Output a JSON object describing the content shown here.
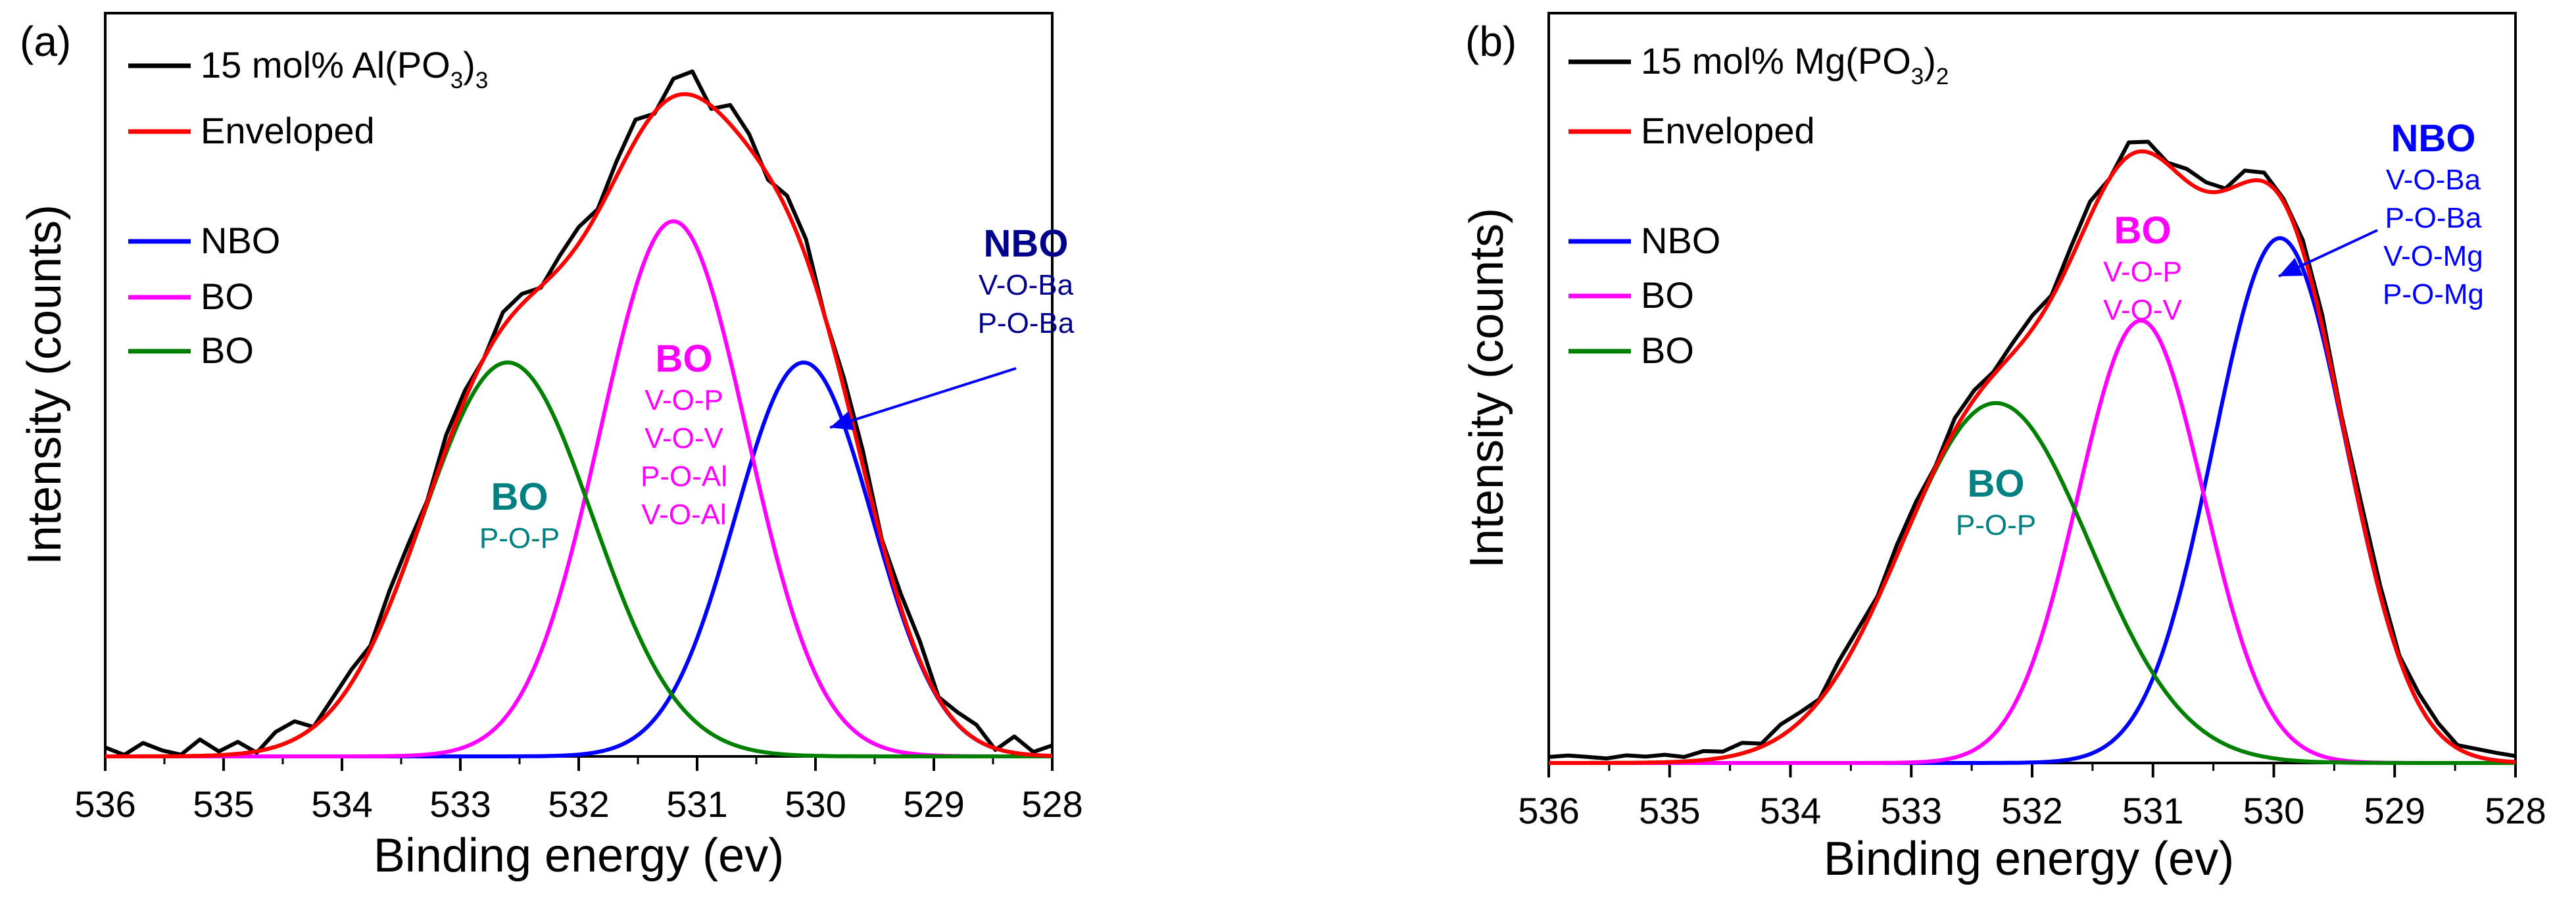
{
  "figure": {
    "xlabel": "Binding energy (ev)",
    "ylabel": "Intensity (counts)"
  },
  "colors": {
    "exp": "#000000",
    "env": "#ff0000",
    "nbo": "#0000ff",
    "bo1": "#ff00ff",
    "bo2": "#008000",
    "bo_teal": "#008080",
    "nbo_dark": "#00008b"
  },
  "chart_data": [
    {
      "panel_label": "(a)",
      "type": "line",
      "xlabel": "Binding energy (ev)",
      "ylabel": "Intensity (counts)",
      "xlim": [
        536,
        528
      ],
      "ylim": [
        0,
        1.0
      ],
      "y_ticks_shown": false,
      "xticks": [
        "536",
        "535",
        "534",
        "533",
        "532",
        "531",
        "530",
        "529",
        "528"
      ],
      "legend": {
        "placement": "top-left",
        "entries": [
          {
            "key": "exp",
            "pre": "15 mol% Al(PO",
            "sub1": "3",
            "mid": ")",
            "sub2": "3"
          },
          {
            "key": "env",
            "pre": "Enveloped",
            "sub1": "",
            "mid": "",
            "sub2": ""
          },
          {
            "key": "nbo",
            "pre": "NBO",
            "sub1": "",
            "mid": "",
            "sub2": ""
          },
          {
            "key": "bo1",
            "pre": "BO",
            "sub1": "",
            "mid": "",
            "sub2": ""
          },
          {
            "key": "bo2",
            "pre": "BO",
            "sub1": "",
            "mid": "",
            "sub2": ""
          }
        ]
      },
      "series": [
        {
          "name": "NBO",
          "key": "nbo",
          "center": 530.1,
          "sigma": 0.58,
          "amplitude": 0.53
        },
        {
          "name": "BO",
          "key": "bo1",
          "center": 531.2,
          "sigma": 0.62,
          "amplitude": 0.72
        },
        {
          "name": "BO",
          "key": "bo2",
          "center": 532.6,
          "sigma": 0.72,
          "amplitude": 0.53
        }
      ],
      "experimental_noise": [
        0.004,
        -0.012,
        0.01,
        0.0,
        -0.006,
        0.014,
        -0.003,
        0.008,
        -0.01,
        0.012,
        0.016,
        -0.008,
        0.006,
        0.01,
        -0.004,
        0.012,
        0.008,
        -0.006,
        0.01,
        0.004,
        -0.008,
        0.012,
        0.006,
        -0.01,
        0.008,
        0.014,
        -0.004,
        0.012,
        0.02,
        -0.01,
        0.016,
        0.024,
        -0.012,
        0.018,
        0.01,
        -0.014,
        0.012,
        0.016,
        -0.008,
        0.006,
        0.012,
        -0.006,
        0.01,
        0.018,
        -0.006,
        0.008,
        0.012,
        -0.01,
        0.014,
        -0.004,
        0.006
      ],
      "annotations": [
        {
          "title": "NBO",
          "lines": [
            "V-O-Ba",
            "P-O-Ba"
          ],
          "colorKey": "nbo_dark",
          "arrow": true
        },
        {
          "title": "BO",
          "lines": [
            "V-O-P",
            "V-O-V",
            "P-O-Al",
            "V-O-Al"
          ],
          "colorKey": "bo1",
          "arrow": false
        },
        {
          "title": "BO",
          "lines": [
            "P-O-P"
          ],
          "colorKey": "bo_teal",
          "arrow": false
        }
      ]
    },
    {
      "panel_label": "(b)",
      "type": "line",
      "xlabel": "Binding energy (ev)",
      "ylabel": "Intensity (counts)",
      "xlim": [
        536,
        528
      ],
      "ylim": [
        0,
        1.0
      ],
      "y_ticks_shown": false,
      "xticks": [
        "536",
        "535",
        "534",
        "533",
        "532",
        "531",
        "530",
        "529",
        "528"
      ],
      "legend": {
        "placement": "top-left",
        "entries": [
          {
            "key": "exp",
            "pre": "15 mol% Mg(PO",
            "sub1": "3",
            "mid": ")",
            "sub2": "2"
          },
          {
            "key": "env",
            "pre": "Enveloped",
            "sub1": "",
            "mid": "",
            "sub2": ""
          },
          {
            "key": "nbo",
            "pre": "NBO",
            "sub1": "",
            "mid": "",
            "sub2": ""
          },
          {
            "key": "bo1",
            "pre": "BO",
            "sub1": "",
            "mid": "",
            "sub2": ""
          },
          {
            "key": "bo2",
            "pre": "BO",
            "sub1": "",
            "mid": "",
            "sub2": ""
          }
        ]
      },
      "series": [
        {
          "name": "NBO",
          "key": "nbo",
          "center": 529.95,
          "sigma": 0.55,
          "amplitude": 0.7
        },
        {
          "name": "BO",
          "key": "bo1",
          "center": 531.1,
          "sigma": 0.52,
          "amplitude": 0.59
        },
        {
          "name": "BO",
          "key": "bo2",
          "center": 532.3,
          "sigma": 0.78,
          "amplitude": 0.48
        }
      ],
      "experimental_noise": [
        0.0,
        0.002,
        0.0,
        -0.002,
        0.002,
        0.0,
        0.002,
        -0.002,
        0.004,
        0.0,
        0.006,
        -0.004,
        0.008,
        0.004,
        -0.006,
        0.008,
        0.006,
        -0.004,
        0.006,
        0.004,
        -0.006,
        0.008,
        0.004,
        -0.004,
        0.006,
        0.01,
        -0.004,
        0.008,
        0.012,
        -0.008,
        0.01,
        0.006,
        -0.006,
        0.008,
        0.004,
        -0.006,
        0.008,
        0.004,
        -0.004,
        0.006,
        0.008,
        -0.004,
        0.006,
        0.004,
        -0.004,
        0.006,
        0.004,
        -0.004,
        0.002,
        0.002,
        0.0
      ],
      "annotations": [
        {
          "title": "NBO",
          "lines": [
            "V-O-Ba",
            "P-O-Ba",
            "V-O-Mg",
            "P-O-Mg"
          ],
          "colorKey": "nbo",
          "arrow": true
        },
        {
          "title": "BO",
          "lines": [
            "V-O-P",
            "V-O-V"
          ],
          "colorKey": "bo1",
          "arrow": false
        },
        {
          "title": "BO",
          "lines": [
            "P-O-P"
          ],
          "colorKey": "bo_teal",
          "arrow": false
        }
      ]
    }
  ]
}
